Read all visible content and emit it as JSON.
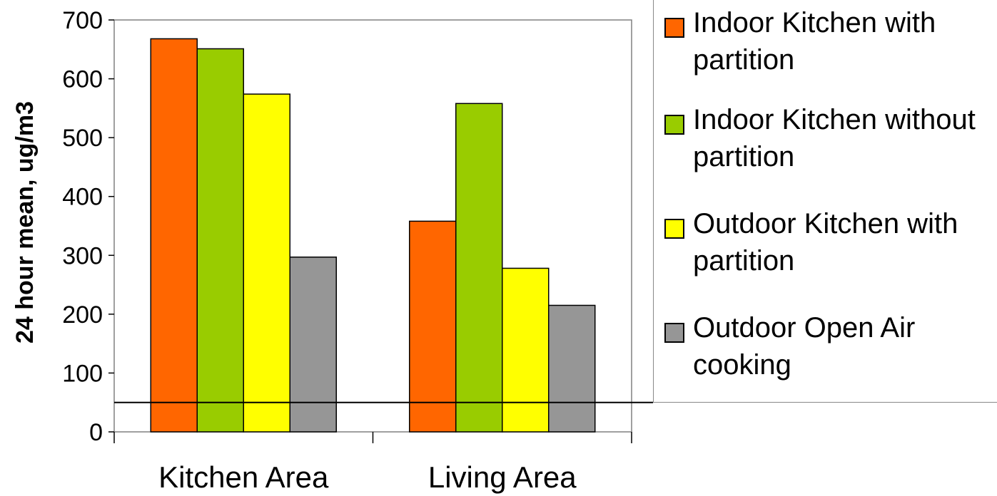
{
  "chart_data": {
    "type": "bar",
    "title": "",
    "xlabel": "",
    "ylabel": "24 hour mean, ug/m3",
    "categories": [
      "Kitchen Area",
      "Living Area"
    ],
    "series": [
      {
        "name": "Indoor Kitchen with partition",
        "color": "#ff6600",
        "values": [
          668,
          358
        ]
      },
      {
        "name": "Indoor Kitchen without partition",
        "color": "#99cc00",
        "values": [
          651,
          558
        ]
      },
      {
        "name": "Outdoor Kitchen with partition",
        "color": "#ffff00",
        "values": [
          574,
          278
        ]
      },
      {
        "name": "Outdoor Open Air cooking",
        "color": "#969696",
        "values": [
          297,
          215
        ]
      }
    ],
    "ylim": [
      0,
      700
    ],
    "yticks": [
      0,
      100,
      200,
      300,
      400,
      500,
      600,
      700
    ],
    "reference_line": 50,
    "grid": false,
    "legend_position": "right"
  },
  "legend": {
    "items": [
      {
        "label_line1": "Indoor Kitchen with",
        "label_line2": "partition"
      },
      {
        "label_line1": "Indoor Kitchen without",
        "label_line2": "partition"
      },
      {
        "label_line1": "Outdoor Kitchen with",
        "label_line2": "partition"
      },
      {
        "label_line1": "Outdoor Open Air",
        "label_line2": "cooking"
      }
    ]
  }
}
